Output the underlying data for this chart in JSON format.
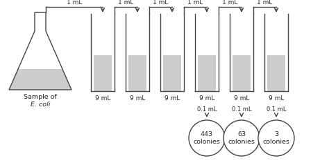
{
  "bg_color": "#ffffff",
  "outline_color": "#444444",
  "liquid_color": "#cccccc",
  "ml_labels": [
    "1 mL",
    "1 mL",
    "1 mL",
    "1 mL",
    "1 mL",
    "1 mL"
  ],
  "tube_labels": [
    "9 mL",
    "9 mL",
    "9 mL",
    "9 mL",
    "9 mL",
    "9 mL"
  ],
  "point1_labels": [
    "0.1 mL",
    "0.1 mL",
    "0.1 mL"
  ],
  "colony_counts": [
    "443\ncolonies",
    "63\ncolonies",
    "3\ncolonies"
  ],
  "sample_label_line1": "Sample of",
  "sample_label_line2": "E. coli"
}
